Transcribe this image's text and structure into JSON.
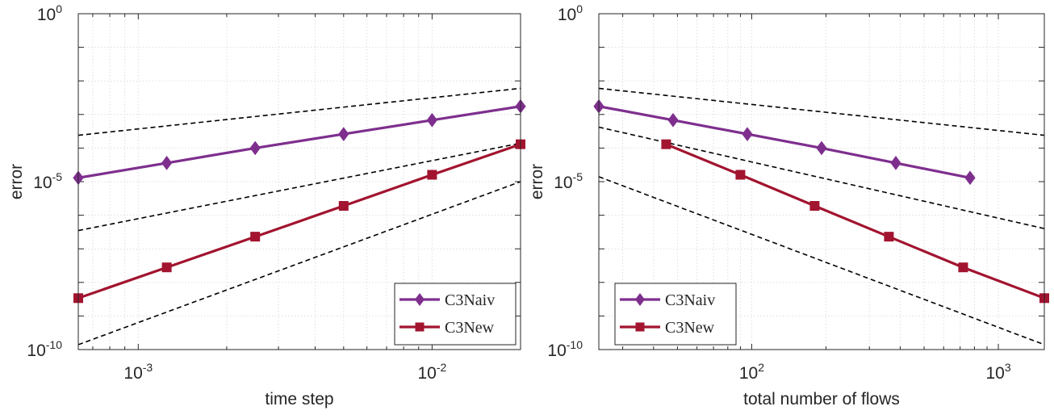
{
  "chart_data": [
    {
      "type": "line",
      "xscale": "log",
      "yscale": "log",
      "xlabel": "time step",
      "ylabel": "error",
      "xlim": [
        0.000625,
        0.02
      ],
      "ylim": [
        1e-10,
        1
      ],
      "xtick_labels": [
        {
          "base": "10",
          "exp": "-3",
          "value": 0.001
        },
        {
          "base": "10",
          "exp": "-2",
          "value": 0.01
        }
      ],
      "ytick_labels": [
        {
          "base": "10",
          "exp": "-10",
          "value": 1e-10
        },
        {
          "base": "10",
          "exp": "-5",
          "value": 1e-05
        },
        {
          "base": "10",
          "exp": "0",
          "value": 1
        }
      ],
      "grid": true,
      "legend": "bottom-right",
      "series": [
        {
          "name": "C3Naiv",
          "color": "#7E2F8E",
          "marker": "diamond",
          "x": [
            0.000625,
            0.00125,
            0.0025,
            0.005,
            0.01,
            0.02
          ],
          "y": [
            1.3e-05,
            3.6e-05,
            0.0001,
            0.00026,
            0.00068,
            0.00175
          ]
        },
        {
          "name": "C3New",
          "color": "#A2142F",
          "marker": "square",
          "x": [
            0.000625,
            0.00125,
            0.0025,
            0.005,
            0.01,
            0.02
          ],
          "y": [
            3.4e-09,
            2.8e-08,
            2.3e-07,
            1.9e-06,
            1.6e-05,
            0.00013
          ]
        }
      ],
      "reference_lines": [
        {
          "x": [
            0.000625,
            0.02
          ],
          "y": [
            0.00024,
            0.006
          ]
        },
        {
          "x": [
            0.000625,
            0.02
          ],
          "y": [
            3.5e-07,
            0.00014
          ]
        },
        {
          "x": [
            0.000625,
            0.02
          ],
          "y": [
            1.4e-10,
            1e-05
          ]
        }
      ]
    },
    {
      "type": "line",
      "xscale": "log",
      "yscale": "log",
      "xlabel": "total number of flows",
      "ylabel": "error",
      "xlim": [
        24,
        1536
      ],
      "ylim": [
        1e-10,
        1
      ],
      "xtick_labels": [
        {
          "base": "10",
          "exp": "2",
          "value": 100
        },
        {
          "base": "10",
          "exp": "3",
          "value": 1000
        }
      ],
      "ytick_labels": [
        {
          "base": "10",
          "exp": "-10",
          "value": 1e-10
        },
        {
          "base": "10",
          "exp": "-5",
          "value": 1e-05
        },
        {
          "base": "10",
          "exp": "0",
          "value": 1
        }
      ],
      "grid": true,
      "legend": "bottom-left",
      "series": [
        {
          "name": "C3Naiv",
          "color": "#7E2F8E",
          "marker": "diamond",
          "x": [
            24,
            48,
            96,
            192,
            384,
            768
          ],
          "y": [
            0.00175,
            0.00068,
            0.00026,
            0.0001,
            3.6e-05,
            1.3e-05
          ]
        },
        {
          "name": "C3New",
          "color": "#A2142F",
          "marker": "square",
          "x": [
            45,
            90,
            180,
            360,
            720,
            1536
          ],
          "y": [
            0.00013,
            1.6e-05,
            1.9e-06,
            2.3e-07,
            2.8e-08,
            3.4e-09
          ]
        }
      ],
      "reference_lines": [
        {
          "x": [
            24,
            1536
          ],
          "y": [
            0.006,
            0.00024
          ]
        },
        {
          "x": [
            24,
            1536
          ],
          "y": [
            0.00042,
            4e-07
          ]
        },
        {
          "x": [
            24,
            1536
          ],
          "y": [
            1.4e-05,
            1.4e-10
          ]
        }
      ]
    }
  ]
}
